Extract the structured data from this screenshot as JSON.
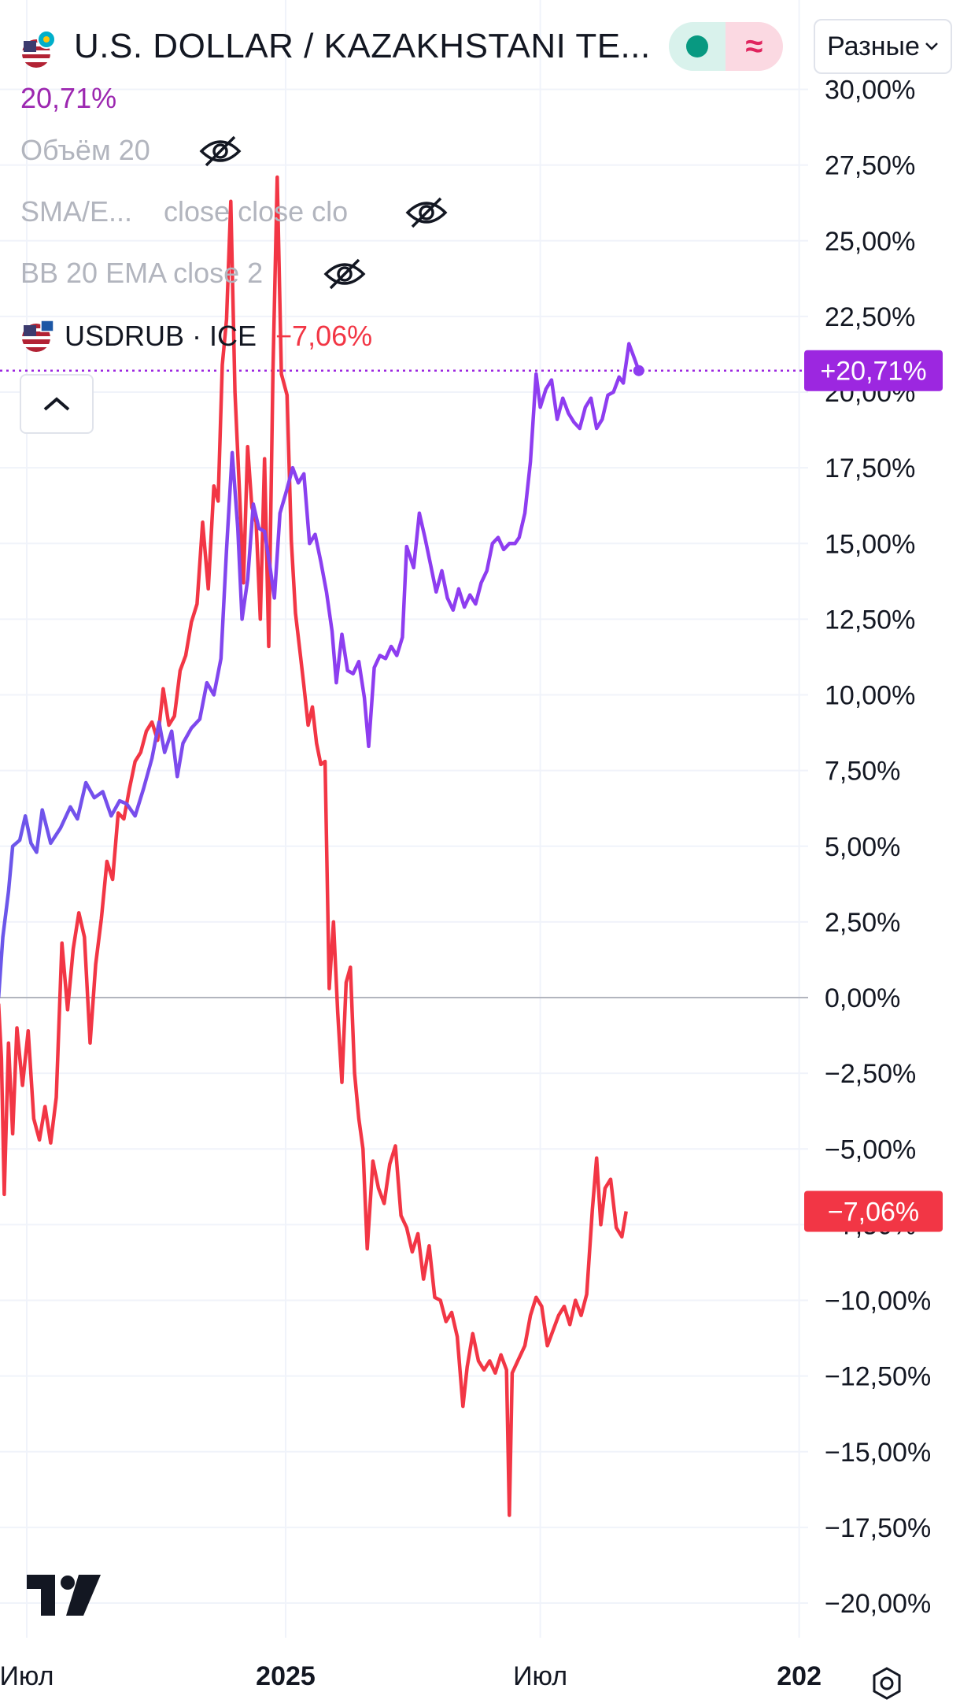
{
  "header": {
    "title": "U.S. DOLLAR / KAZAKHSTANI TE...",
    "scale_mode": "Разные",
    "main_percent": "20,71%"
  },
  "indicators": [
    {
      "label": "Объём 20",
      "hidden": true
    },
    {
      "label": "SMA/E...",
      "params": "close close clo",
      "hidden": true
    },
    {
      "label": "BB 20 EMA close 2",
      "hidden": true
    }
  ],
  "compare": {
    "symbol": "USDRUB · ICE",
    "change": "−7,06%"
  },
  "colors": {
    "kzt_line": "#8e3df0",
    "kzt_line_early": "#6b57ea",
    "rub_line": "#f23645",
    "kzt_badge": "#9c27e0",
    "rub_badge": "#f23645",
    "grid": "#f0f3fa",
    "zero_line": "#b2b5be"
  },
  "price_badges": {
    "kzt": "+20,71%",
    "rub": "−7,06%"
  },
  "chart_data": {
    "type": "line",
    "y_unit": "%",
    "ylim": [
      -21.5,
      30
    ],
    "y_ticks": [
      30,
      27.5,
      25,
      22.5,
      20,
      17.5,
      15,
      12.5,
      10,
      7.5,
      5,
      2.5,
      0,
      -2.5,
      -5,
      -7.5,
      -10,
      -12.5,
      -15,
      -17.5,
      -20
    ],
    "y_tick_labels": [
      "30,00%",
      "27,50%",
      "25,00%",
      "22,50%",
      "20,00%",
      "17,50%",
      "15,00%",
      "12,50%",
      "10,00%",
      "7,50%",
      "5,00%",
      "2,50%",
      "0,00%",
      "−2,50%",
      "−5,00%",
      "−7,50%",
      "−10,00%",
      "−12,50%",
      "−15,00%",
      "−17,50%",
      "−20,00%"
    ],
    "x_domain": [
      "2024-06-11",
      "2026-01-20"
    ],
    "x_ticks": [
      {
        "date": "2024-07-01",
        "label": "Июл",
        "bold": false
      },
      {
        "date": "2025-01-01",
        "label": "2025",
        "bold": true
      },
      {
        "date": "2025-07-01",
        "label": "Июл",
        "bold": false
      },
      {
        "date": "2026-01-01",
        "label": "202",
        "bold": true
      }
    ],
    "grid": true,
    "series": [
      {
        "name": "U.S. DOLLAR / KAZAKHSTANI TE...",
        "last_value": 20.71,
        "points": [
          [
            "2024-06-11",
            0.0
          ],
          [
            "2024-06-14",
            2.0
          ],
          [
            "2024-06-18",
            3.5
          ],
          [
            "2024-06-21",
            5.0
          ],
          [
            "2024-06-26",
            5.2
          ],
          [
            "2024-06-30",
            6.0
          ],
          [
            "2024-07-04",
            5.1
          ],
          [
            "2024-07-08",
            4.8
          ],
          [
            "2024-07-12",
            6.2
          ],
          [
            "2024-07-18",
            5.1
          ],
          [
            "2024-07-25",
            5.6
          ],
          [
            "2024-08-01",
            6.3
          ],
          [
            "2024-08-06",
            5.9
          ],
          [
            "2024-08-12",
            7.1
          ],
          [
            "2024-08-18",
            6.6
          ],
          [
            "2024-08-24",
            6.8
          ],
          [
            "2024-08-30",
            6.0
          ],
          [
            "2024-09-05",
            6.5
          ],
          [
            "2024-09-10",
            6.4
          ],
          [
            "2024-09-16",
            6.0
          ],
          [
            "2024-09-22",
            6.9
          ],
          [
            "2024-09-28",
            7.9
          ],
          [
            "2024-10-03",
            9.1
          ],
          [
            "2024-10-07",
            8.1
          ],
          [
            "2024-10-12",
            8.8
          ],
          [
            "2024-10-16",
            7.3
          ],
          [
            "2024-10-20",
            8.4
          ],
          [
            "2024-10-26",
            8.9
          ],
          [
            "2024-11-01",
            9.2
          ],
          [
            "2024-11-06",
            10.4
          ],
          [
            "2024-11-11",
            10.0
          ],
          [
            "2024-11-16",
            11.2
          ],
          [
            "2024-11-20",
            14.8
          ],
          [
            "2024-11-24",
            18.0
          ],
          [
            "2024-11-28",
            15.5
          ],
          [
            "2024-12-01",
            12.5
          ],
          [
            "2024-12-05",
            13.8
          ],
          [
            "2024-12-09",
            16.3
          ],
          [
            "2024-12-13",
            15.5
          ],
          [
            "2024-12-17",
            15.4
          ],
          [
            "2024-12-21",
            14.2
          ],
          [
            "2024-12-24",
            13.2
          ],
          [
            "2024-12-28",
            16.0
          ],
          [
            "2025-01-02",
            16.8
          ],
          [
            "2025-01-06",
            17.5
          ],
          [
            "2025-01-10",
            17.0
          ],
          [
            "2025-01-14",
            17.3
          ],
          [
            "2025-01-18",
            15.0
          ],
          [
            "2025-01-22",
            15.3
          ],
          [
            "2025-01-26",
            14.4
          ],
          [
            "2025-01-30",
            13.4
          ],
          [
            "2025-02-03",
            12.1
          ],
          [
            "2025-02-06",
            10.4
          ],
          [
            "2025-02-10",
            12.0
          ],
          [
            "2025-02-14",
            10.8
          ],
          [
            "2025-02-18",
            10.7
          ],
          [
            "2025-02-22",
            11.1
          ],
          [
            "2025-02-26",
            9.9
          ],
          [
            "2025-03-01",
            8.3
          ],
          [
            "2025-03-05",
            10.9
          ],
          [
            "2025-03-09",
            11.3
          ],
          [
            "2025-03-13",
            11.2
          ],
          [
            "2025-03-17",
            11.6
          ],
          [
            "2025-03-21",
            11.3
          ],
          [
            "2025-03-25",
            11.9
          ],
          [
            "2025-03-28",
            14.9
          ],
          [
            "2025-04-02",
            14.2
          ],
          [
            "2025-04-06",
            16.0
          ],
          [
            "2025-04-10",
            15.2
          ],
          [
            "2025-04-14",
            14.3
          ],
          [
            "2025-04-18",
            13.4
          ],
          [
            "2025-04-22",
            14.1
          ],
          [
            "2025-04-26",
            13.2
          ],
          [
            "2025-04-30",
            12.8
          ],
          [
            "2025-05-04",
            13.5
          ],
          [
            "2025-05-08",
            12.9
          ],
          [
            "2025-05-12",
            13.3
          ],
          [
            "2025-05-16",
            13.0
          ],
          [
            "2025-05-20",
            13.7
          ],
          [
            "2025-05-24",
            14.1
          ],
          [
            "2025-05-28",
            15.0
          ],
          [
            "2025-06-01",
            15.2
          ],
          [
            "2025-06-05",
            14.8
          ],
          [
            "2025-06-09",
            15.0
          ],
          [
            "2025-06-13",
            15.0
          ],
          [
            "2025-06-16",
            15.2
          ],
          [
            "2025-06-20",
            16.0
          ],
          [
            "2025-06-24",
            17.7
          ],
          [
            "2025-06-28",
            20.6
          ],
          [
            "2025-07-01",
            19.5
          ],
          [
            "2025-07-05",
            20.1
          ],
          [
            "2025-07-09",
            20.4
          ],
          [
            "2025-07-13",
            19.1
          ],
          [
            "2025-07-17",
            19.8
          ],
          [
            "2025-07-21",
            19.3
          ],
          [
            "2025-07-25",
            19.0
          ],
          [
            "2025-07-29",
            18.8
          ],
          [
            "2025-08-02",
            19.5
          ],
          [
            "2025-08-06",
            19.8
          ],
          [
            "2025-08-10",
            18.8
          ],
          [
            "2025-08-14",
            19.1
          ],
          [
            "2025-08-18",
            19.9
          ],
          [
            "2025-08-22",
            20.0
          ],
          [
            "2025-08-26",
            20.5
          ],
          [
            "2025-08-29",
            20.3
          ],
          [
            "2025-09-02",
            21.6
          ],
          [
            "2025-09-06",
            21.1
          ],
          [
            "2025-09-09",
            20.71
          ]
        ]
      },
      {
        "name": "USDRUB · ICE",
        "last_value": -7.06,
        "points": [
          [
            "2024-06-11",
            -0.2
          ],
          [
            "2024-06-13",
            -2.0
          ],
          [
            "2024-06-15",
            -6.5
          ],
          [
            "2024-06-18",
            -1.5
          ],
          [
            "2024-06-21",
            -4.5
          ],
          [
            "2024-06-24",
            -1.0
          ],
          [
            "2024-06-28",
            -2.9
          ],
          [
            "2024-07-02",
            -1.1
          ],
          [
            "2024-07-06",
            -4.0
          ],
          [
            "2024-07-10",
            -4.7
          ],
          [
            "2024-07-14",
            -3.6
          ],
          [
            "2024-07-18",
            -4.8
          ],
          [
            "2024-07-22",
            -3.3
          ],
          [
            "2024-07-26",
            1.8
          ],
          [
            "2024-07-30",
            -0.4
          ],
          [
            "2024-08-03",
            1.6
          ],
          [
            "2024-08-07",
            2.8
          ],
          [
            "2024-08-11",
            2.0
          ],
          [
            "2024-08-15",
            -1.5
          ],
          [
            "2024-08-19",
            1.1
          ],
          [
            "2024-08-23",
            2.6
          ],
          [
            "2024-08-27",
            4.5
          ],
          [
            "2024-08-31",
            3.9
          ],
          [
            "2024-09-04",
            6.1
          ],
          [
            "2024-09-08",
            5.9
          ],
          [
            "2024-09-12",
            6.9
          ],
          [
            "2024-09-16",
            7.8
          ],
          [
            "2024-09-20",
            8.1
          ],
          [
            "2024-09-24",
            8.8
          ],
          [
            "2024-09-28",
            9.1
          ],
          [
            "2024-10-02",
            8.5
          ],
          [
            "2024-10-06",
            10.2
          ],
          [
            "2024-10-10",
            9.0
          ],
          [
            "2024-10-14",
            9.3
          ],
          [
            "2024-10-18",
            10.8
          ],
          [
            "2024-10-22",
            11.3
          ],
          [
            "2024-10-26",
            12.4
          ],
          [
            "2024-10-30",
            13.0
          ],
          [
            "2024-11-03",
            15.7
          ],
          [
            "2024-11-07",
            13.5
          ],
          [
            "2024-11-11",
            16.9
          ],
          [
            "2024-11-14",
            16.4
          ],
          [
            "2024-11-17",
            20.9
          ],
          [
            "2024-11-20",
            22.4
          ],
          [
            "2024-11-23",
            26.3
          ],
          [
            "2024-11-26",
            20.0
          ],
          [
            "2024-11-29",
            16.9
          ],
          [
            "2024-12-02",
            13.7
          ],
          [
            "2024-12-05",
            18.2
          ],
          [
            "2024-12-08",
            16.2
          ],
          [
            "2024-12-11",
            15.7
          ],
          [
            "2024-12-14",
            12.5
          ],
          [
            "2024-12-17",
            17.8
          ],
          [
            "2024-12-20",
            11.6
          ],
          [
            "2024-12-23",
            20.7
          ],
          [
            "2024-12-26",
            27.1
          ],
          [
            "2024-12-29",
            20.6
          ],
          [
            "2025-01-02",
            19.9
          ],
          [
            "2025-01-05",
            15.1
          ],
          [
            "2025-01-08",
            12.7
          ],
          [
            "2025-01-11",
            11.5
          ],
          [
            "2025-01-14",
            10.3
          ],
          [
            "2025-01-17",
            9.0
          ],
          [
            "2025-01-20",
            9.6
          ],
          [
            "2025-01-23",
            8.4
          ],
          [
            "2025-01-26",
            7.7
          ],
          [
            "2025-01-29",
            7.8
          ],
          [
            "2025-02-01",
            0.3
          ],
          [
            "2025-02-04",
            2.5
          ],
          [
            "2025-02-07",
            -0.5
          ],
          [
            "2025-02-10",
            -2.8
          ],
          [
            "2025-02-13",
            0.5
          ],
          [
            "2025-02-16",
            1.0
          ],
          [
            "2025-02-19",
            -2.5
          ],
          [
            "2025-02-22",
            -4.0
          ],
          [
            "2025-02-25",
            -5.0
          ],
          [
            "2025-02-28",
            -8.3
          ],
          [
            "2025-03-04",
            -5.4
          ],
          [
            "2025-03-08",
            -6.3
          ],
          [
            "2025-03-12",
            -6.8
          ],
          [
            "2025-03-16",
            -5.5
          ],
          [
            "2025-03-20",
            -4.9
          ],
          [
            "2025-03-24",
            -7.2
          ],
          [
            "2025-03-28",
            -7.6
          ],
          [
            "2025-04-01",
            -8.4
          ],
          [
            "2025-04-05",
            -7.8
          ],
          [
            "2025-04-09",
            -9.3
          ],
          [
            "2025-04-13",
            -8.2
          ],
          [
            "2025-04-17",
            -9.9
          ],
          [
            "2025-04-21",
            -10.0
          ],
          [
            "2025-04-25",
            -10.7
          ],
          [
            "2025-04-29",
            -10.4
          ],
          [
            "2025-05-03",
            -11.2
          ],
          [
            "2025-05-07",
            -13.5
          ],
          [
            "2025-05-10",
            -12.2
          ],
          [
            "2025-05-14",
            -11.1
          ],
          [
            "2025-05-18",
            -12.0
          ],
          [
            "2025-05-22",
            -12.3
          ],
          [
            "2025-05-26",
            -12.0
          ],
          [
            "2025-05-30",
            -12.4
          ],
          [
            "2025-06-03",
            -11.8
          ],
          [
            "2025-06-07",
            -12.3
          ],
          [
            "2025-06-09",
            -17.1
          ],
          [
            "2025-06-11",
            -12.4
          ],
          [
            "2025-06-15",
            -12.0
          ],
          [
            "2025-06-20",
            -11.5
          ],
          [
            "2025-06-24",
            -10.5
          ],
          [
            "2025-06-28",
            -9.9
          ],
          [
            "2025-07-02",
            -10.2
          ],
          [
            "2025-07-06",
            -11.5
          ],
          [
            "2025-07-10",
            -11.0
          ],
          [
            "2025-07-14",
            -10.5
          ],
          [
            "2025-07-18",
            -10.2
          ],
          [
            "2025-07-22",
            -10.8
          ],
          [
            "2025-07-26",
            -10.0
          ],
          [
            "2025-07-30",
            -10.5
          ],
          [
            "2025-08-03",
            -9.8
          ],
          [
            "2025-08-07",
            -7.0
          ],
          [
            "2025-08-10",
            -5.3
          ],
          [
            "2025-08-13",
            -7.5
          ],
          [
            "2025-08-16",
            -6.3
          ],
          [
            "2025-08-20",
            -6.0
          ],
          [
            "2025-08-24",
            -7.6
          ],
          [
            "2025-08-28",
            -7.9
          ],
          [
            "2025-08-31",
            -7.06
          ]
        ]
      }
    ]
  }
}
